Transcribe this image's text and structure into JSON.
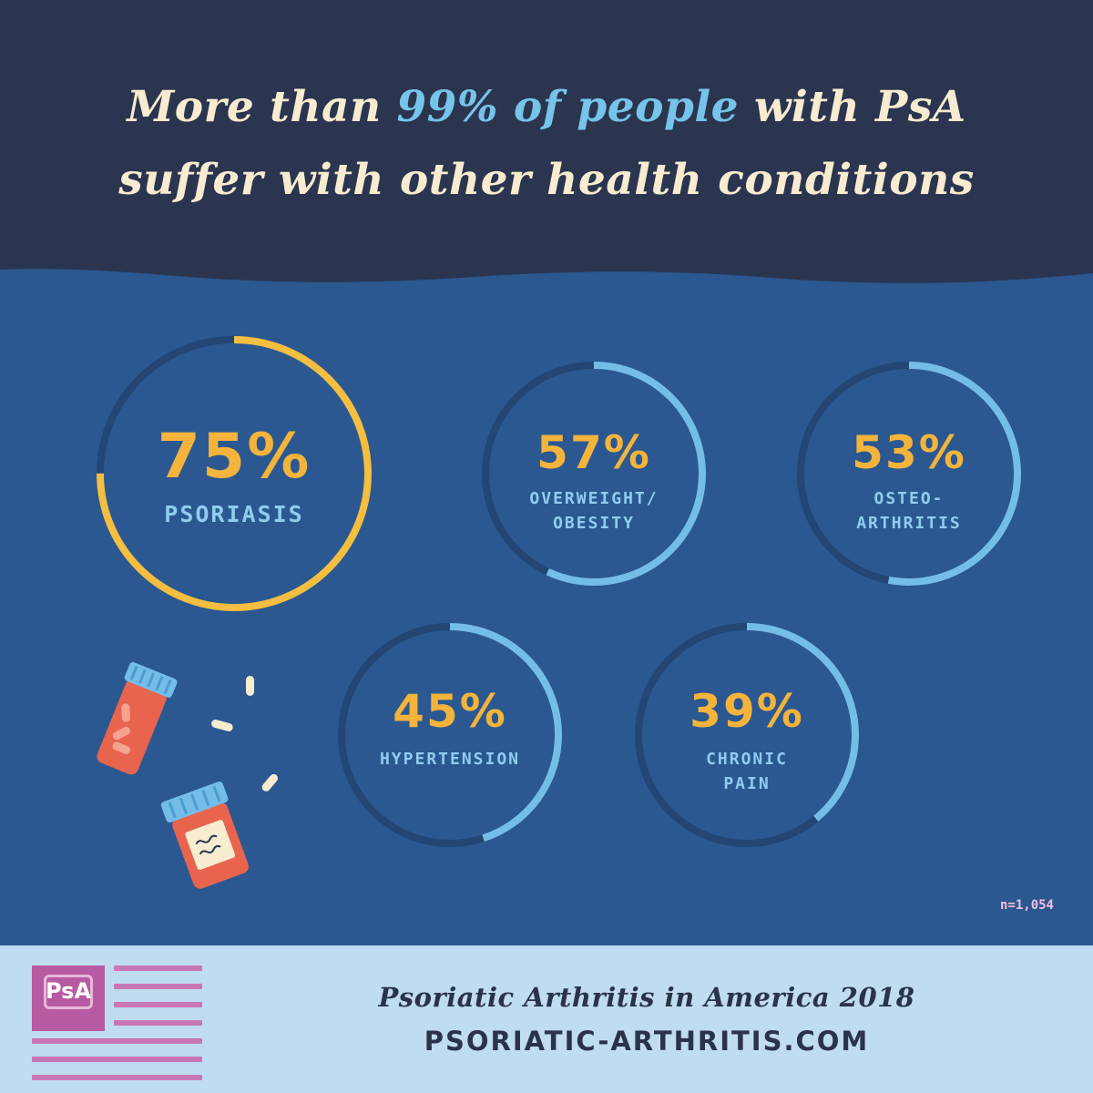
{
  "header": {
    "title_line1_pre": "More than ",
    "title_line1_highlight": "99% of people",
    "title_line1_post": " with PsA",
    "title_line2": "suffer with other health conditions"
  },
  "chart_data": {
    "type": "donut",
    "title": "More than 99% of people with PsA suffer with other health conditions",
    "unit": "%",
    "series": [
      {
        "name": "PSORIASIS",
        "label_lines": [
          "PSORIASIS"
        ],
        "value": 75,
        "display": "75%"
      },
      {
        "name": "OVERWEIGHT/ OBESITY",
        "label_lines": [
          "OVERWEIGHT/",
          "OBESITY"
        ],
        "value": 57,
        "display": "57%"
      },
      {
        "name": "OSTEO- ARTHRITIS",
        "label_lines": [
          "OSTEO-",
          "ARTHRITIS"
        ],
        "value": 53,
        "display": "53%"
      },
      {
        "name": "HYPERTENSION",
        "label_lines": [
          "HYPERTENSION"
        ],
        "value": 45,
        "display": "45%"
      },
      {
        "name": "CHRONIC PAIN",
        "label_lines": [
          "CHRONIC",
          "PAIN"
        ],
        "value": 39,
        "display": "39%"
      }
    ],
    "note": "n=1,054"
  },
  "footer": {
    "logo_text": "PsA",
    "title": "Psoriatic Arthritis in America 2018",
    "url": "PSORIATIC-ARTHRITIS.COM"
  },
  "colors": {
    "header_bg": "#2b3550",
    "main_bg": "#2b5891",
    "title_text": "#f7ecd0",
    "title_highlight": "#76c4ea",
    "ring_track": "#234674",
    "ring_primary": "#f4be40",
    "ring_secondary": "#74bde8",
    "percent_text": "#f4b43c",
    "label_text": "#8fcdee",
    "footer_bg": "#bfdcf0",
    "logo": "#b85aa1"
  }
}
